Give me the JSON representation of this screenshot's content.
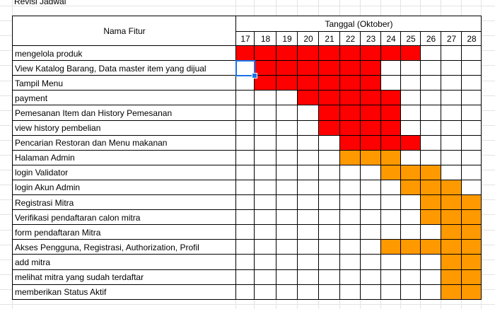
{
  "sheet": {
    "title": "Revisi Jadwal",
    "header_feature": "Nama Fitur",
    "header_date_group": "Tanggal (Oktober)",
    "dates": [
      "17",
      "18",
      "19",
      "20",
      "21",
      "22",
      "23",
      "24",
      "25",
      "26",
      "27",
      "28"
    ],
    "colors": {
      "red": "#ff0000",
      "orange": "#ff9900",
      "blank": "#ffffff",
      "border": "#000000",
      "selection": "#1a73e8"
    },
    "selected_cell": "View Katalog Barang, Data master item yang dijual / 17",
    "rows": [
      {
        "label": "mengelola produk",
        "cells": [
          "red",
          "red",
          "red",
          "red",
          "red",
          "red",
          "red",
          "red",
          "red",
          "",
          "",
          ""
        ]
      },
      {
        "label": "View Katalog Barang, Data master item yang dijual",
        "cells": [
          "",
          "red",
          "red",
          "red",
          "red",
          "red",
          "red",
          "",
          "",
          "",
          "",
          ""
        ]
      },
      {
        "label": "Tampil Menu",
        "cells": [
          "",
          "red",
          "red",
          "red",
          "red",
          "red",
          "red",
          "",
          "",
          "",
          "",
          ""
        ]
      },
      {
        "label": "payment",
        "cells": [
          "",
          "",
          "",
          "red",
          "red",
          "red",
          "red",
          "red",
          "",
          "",
          "",
          ""
        ]
      },
      {
        "label": "Pemesanan Item dan History Pemesanan",
        "cells": [
          "",
          "",
          "",
          "",
          "red",
          "red",
          "red",
          "red",
          "",
          "",
          "",
          ""
        ]
      },
      {
        "label": "view history pembelian",
        "cells": [
          "",
          "",
          "",
          "",
          "red",
          "red",
          "red",
          "red",
          "",
          "",
          "",
          ""
        ]
      },
      {
        "label": "Pencarian Restoran dan Menu makanan",
        "cells": [
          "",
          "",
          "",
          "",
          "",
          "red",
          "red",
          "red",
          "red",
          "",
          "",
          ""
        ]
      },
      {
        "label": "Halaman Admin",
        "cells": [
          "",
          "",
          "",
          "",
          "",
          "orange",
          "orange",
          "orange",
          "",
          "",
          "",
          ""
        ]
      },
      {
        "label": "login Validator",
        "cells": [
          "",
          "",
          "",
          "",
          "",
          "",
          "",
          "orange",
          "orange",
          "orange",
          "",
          ""
        ]
      },
      {
        "label": "login Akun Admin",
        "cells": [
          "",
          "",
          "",
          "",
          "",
          "",
          "",
          "",
          "orange",
          "orange",
          "orange",
          ""
        ]
      },
      {
        "label": "Registrasi Mitra",
        "cells": [
          "",
          "",
          "",
          "",
          "",
          "",
          "",
          "",
          "",
          "orange",
          "orange",
          "orange"
        ]
      },
      {
        "label": "Verifikasi pendaftaran calon mitra",
        "cells": [
          "",
          "",
          "",
          "",
          "",
          "",
          "",
          "",
          "",
          "orange",
          "orange",
          "orange"
        ]
      },
      {
        "label": "form pendaftaran Mitra",
        "cells": [
          "",
          "",
          "",
          "",
          "",
          "",
          "",
          "",
          "",
          "",
          "orange",
          "orange"
        ]
      },
      {
        "label": "Akses Pengguna, Registrasi, Authorization, Profil",
        "cells": [
          "",
          "",
          "",
          "",
          "",
          "",
          "",
          "orange",
          "orange",
          "orange",
          "orange",
          "orange"
        ]
      },
      {
        "label": "add mitra",
        "cells": [
          "",
          "",
          "",
          "",
          "",
          "",
          "",
          "",
          "",
          "",
          "orange",
          "orange"
        ]
      },
      {
        "label": "melihat mitra yang sudah terdaftar",
        "cells": [
          "",
          "",
          "",
          "",
          "",
          "",
          "",
          "",
          "",
          "",
          "orange",
          "orange"
        ]
      },
      {
        "label": "memberikan Status Aktif",
        "cells": [
          "",
          "",
          "",
          "",
          "",
          "",
          "",
          "",
          "",
          "",
          "orange",
          "orange"
        ]
      }
    ]
  }
}
